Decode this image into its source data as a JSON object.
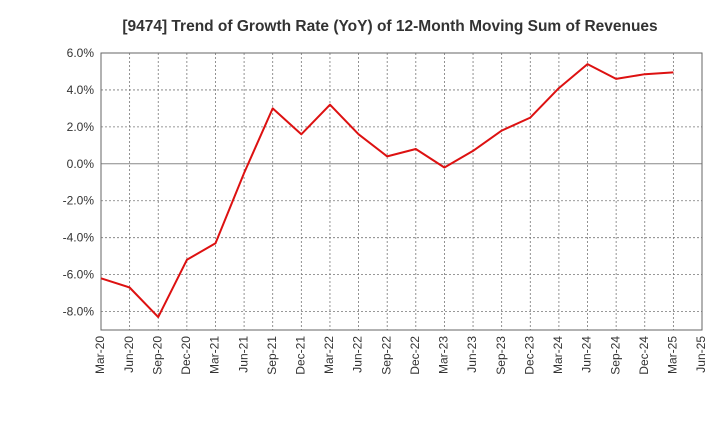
{
  "chart_data": {
    "type": "line",
    "title": "[9474]  Trend of Growth Rate (YoY) of 12-Month Moving Sum of Revenues",
    "xlabel": "",
    "ylabel": "",
    "ylim": [
      -9,
      6
    ],
    "y_ticks": [
      6,
      4,
      2,
      0,
      -2,
      -4,
      -6,
      -8
    ],
    "y_tick_labels": [
      "6.0%",
      "4.0%",
      "2.0%",
      "0.0%",
      "-2.0%",
      "-4.0%",
      "-6.0%",
      "-8.0%"
    ],
    "x_tick_labels": [
      "Mar-20",
      "Jun-20",
      "Sep-20",
      "Dec-20",
      "Mar-21",
      "Jun-21",
      "Sep-21",
      "Dec-21",
      "Mar-22",
      "Jun-22",
      "Sep-22",
      "Dec-22",
      "Mar-23",
      "Jun-23",
      "Sep-23",
      "Dec-23",
      "Mar-24",
      "Jun-24",
      "Sep-24",
      "Dec-24",
      "Mar-25",
      "Jun-25"
    ],
    "grid": true,
    "line_color": "#dd1111",
    "x": [
      "Mar-20",
      "Jun-20",
      "Sep-20",
      "Dec-20",
      "Mar-21",
      "Jun-21",
      "Sep-21",
      "Dec-21",
      "Mar-22",
      "Jun-22",
      "Sep-22",
      "Dec-22",
      "Mar-23",
      "Jun-23",
      "Sep-23",
      "Dec-23",
      "Mar-24",
      "Jun-24",
      "Sep-24",
      "Dec-24",
      "Mar-25"
    ],
    "values": [
      -6.2,
      -6.7,
      -8.3,
      -5.2,
      -4.3,
      -0.5,
      3.0,
      1.6,
      3.2,
      1.6,
      0.4,
      0.8,
      -0.2,
      0.7,
      1.8,
      2.5,
      4.1,
      5.4,
      4.6,
      4.85,
      4.95
    ]
  }
}
